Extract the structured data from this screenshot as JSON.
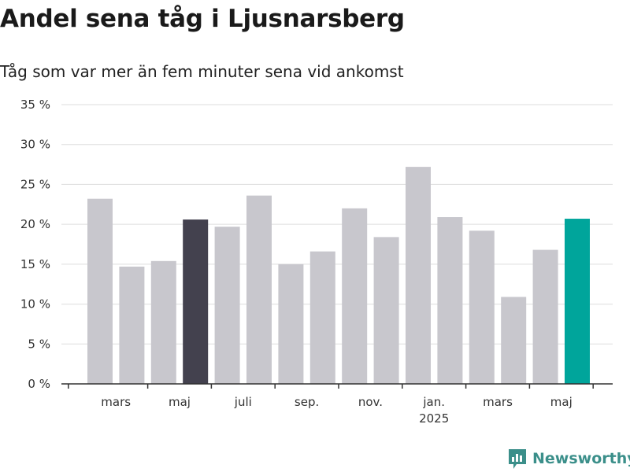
{
  "title": "Andel sena tåg i Ljusnarsberg",
  "subtitle": "Tåg som var mer än fem minuter sena vid ankomst",
  "brand": "Newsworthy",
  "colors": {
    "bar_default": "#c8c7cd",
    "bar_highlight_dark": "#43414e",
    "bar_highlight_accent": "#00a59b",
    "grid": "#dddddd",
    "axis": "#333333",
    "brand": "#3b8f8a"
  },
  "chart_data": {
    "type": "bar",
    "title": "Andel sena tåg i Ljusnarsberg",
    "subtitle": "Tåg som var mer än fem minuter sena vid ankomst",
    "xlabel": "",
    "ylabel": "",
    "ylim": [
      0,
      35
    ],
    "y_ticks": [
      0,
      5,
      10,
      15,
      20,
      25,
      30,
      35
    ],
    "y_tick_labels": [
      "0 %",
      "5 %",
      "10 %",
      "15 %",
      "20 %",
      "25 %",
      "30 %",
      "35 %"
    ],
    "grid": true,
    "series": [
      {
        "values": [
          23.2,
          14.7,
          15.4,
          20.6,
          19.7,
          23.6,
          15.0,
          16.6,
          22.0,
          18.4,
          27.2,
          20.9,
          19.2,
          10.9,
          16.8,
          20.7
        ],
        "highlights": {
          "3": "dark",
          "15": "accent"
        }
      }
    ],
    "x_tick_labels": [
      {
        "after_bar": 1,
        "label": "mars",
        "sublabel": ""
      },
      {
        "after_bar": 3,
        "label": "maj",
        "sublabel": ""
      },
      {
        "after_bar": 5,
        "label": "juli",
        "sublabel": ""
      },
      {
        "after_bar": 7,
        "label": "sep.",
        "sublabel": ""
      },
      {
        "after_bar": 9,
        "label": "nov.",
        "sublabel": ""
      },
      {
        "after_bar": 11,
        "label": "jan.",
        "sublabel": "2025"
      },
      {
        "after_bar": 13,
        "label": "mars",
        "sublabel": ""
      },
      {
        "after_bar": 15,
        "label": "maj",
        "sublabel": ""
      }
    ]
  }
}
